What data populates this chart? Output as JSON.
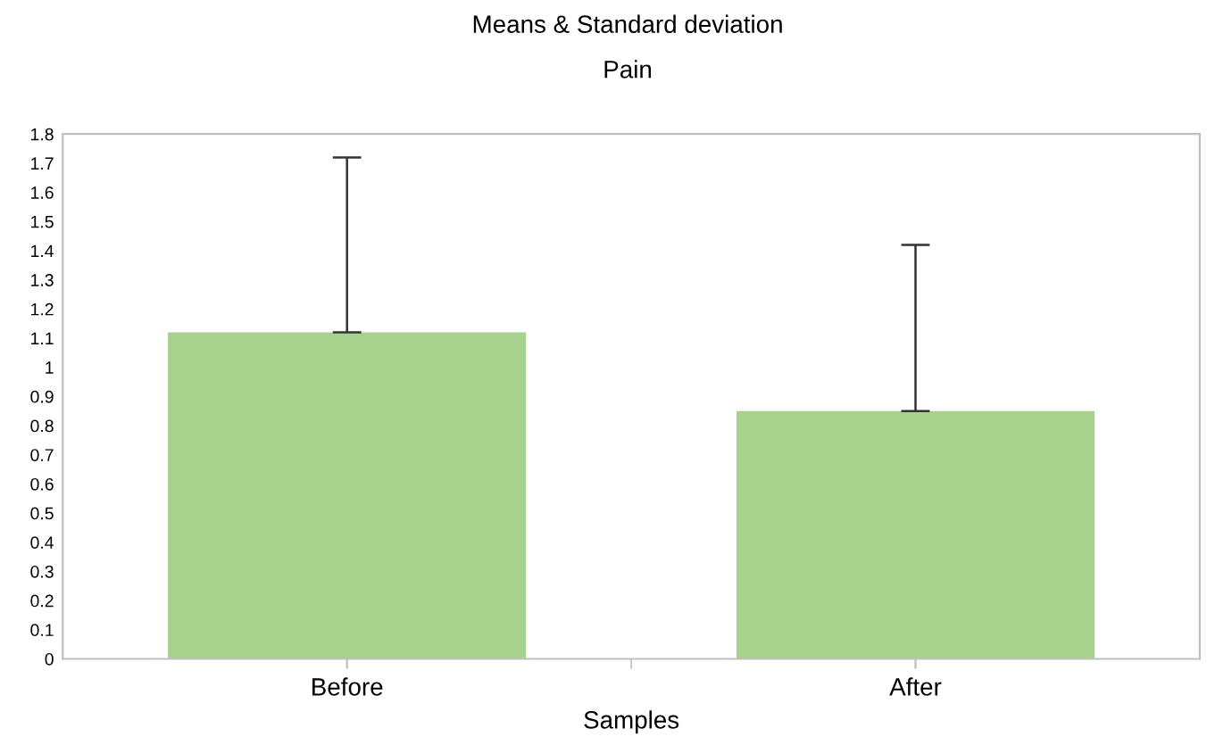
{
  "chart_data": {
    "type": "bar",
    "title": "Means & Standard deviation",
    "subtitle": "Pain",
    "xlabel": "Samples",
    "categories": [
      "Before",
      "After"
    ],
    "values": [
      1.12,
      0.85
    ],
    "color": "#a9d18e",
    "errors": [
      [
        1.12,
        1.72
      ],
      [
        0.85,
        1.42
      ]
    ],
    "ylim": [
      0,
      1.8
    ],
    "yticks": [
      0,
      0.1,
      0.2,
      0.3,
      0.4,
      0.5,
      0.6,
      0.7,
      0.8,
      0.9,
      1,
      1.1,
      1.2,
      1.3,
      1.4,
      1.5,
      1.6,
      1.7,
      1.8
    ],
    "grid": false,
    "legend": false
  }
}
